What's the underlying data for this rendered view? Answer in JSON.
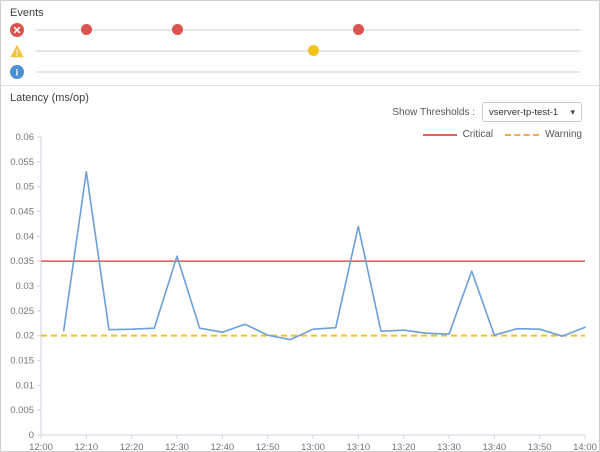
{
  "panels": {
    "events": {
      "title": "Events",
      "rows": [
        {
          "type": "error",
          "icon": "error-circle-icon",
          "icon_color": "#d9534f",
          "dot_color": "#d9534f",
          "events": [
            "12:10",
            "12:30",
            "13:10"
          ]
        },
        {
          "type": "warning",
          "icon": "warning-triangle-icon",
          "icon_color": "#f5c33b",
          "dot_color": "#f0c419",
          "events": [
            "13:00"
          ]
        },
        {
          "type": "info",
          "icon": "info-circle-icon",
          "icon_color": "#4a90d2",
          "dot_color": "#4a90d2",
          "events": []
        }
      ]
    },
    "latency": {
      "title": "Latency (ms/op)",
      "controls": {
        "label": "Show Thresholds :",
        "dropdown_value": "vserver-tp-test-1"
      },
      "legend": [
        {
          "label": "Critical",
          "color": "#e2615c",
          "style": "solid"
        },
        {
          "label": "Warning",
          "color": "#f0ad4e",
          "style": "dashed"
        }
      ]
    }
  },
  "chart_data": {
    "type": "line",
    "title": "Latency (ms/op)",
    "series_name": "Latency",
    "series_color": "#6d9fd8",
    "x": [
      "12:05",
      "12:10",
      "12:15",
      "12:20",
      "12:25",
      "12:30",
      "12:35",
      "12:40",
      "12:45",
      "12:50",
      "12:55",
      "13:00",
      "13:05",
      "13:10",
      "13:15",
      "13:20",
      "13:25",
      "13:30",
      "13:35",
      "13:40",
      "13:45",
      "13:50",
      "13:55",
      "14:00"
    ],
    "values": [
      0.021,
      0.053,
      0.0212,
      0.0213,
      0.0215,
      0.036,
      0.0215,
      0.0207,
      0.0223,
      0.0201,
      0.0192,
      0.0213,
      0.0216,
      0.042,
      0.0209,
      0.0211,
      0.0205,
      0.0203,
      0.033,
      0.0201,
      0.0214,
      0.0213,
      0.0199,
      0.0217
    ],
    "x_ticks": [
      "12:00",
      "12:10",
      "12:20",
      "12:30",
      "12:40",
      "12:50",
      "13:00",
      "13:10",
      "13:20",
      "13:30",
      "13:40",
      "13:50",
      "14:00"
    ],
    "y_ticks": [
      0,
      0.005,
      0.01,
      0.015,
      0.02,
      0.025,
      0.03,
      0.035,
      0.04,
      0.045,
      0.05,
      0.055,
      0.06
    ],
    "ylim": [
      0,
      0.06
    ],
    "xlim": [
      "12:00",
      "14:00"
    ],
    "xlabel": "",
    "ylabel": "",
    "grid": false,
    "legend_position": "top-right",
    "axis_color": "#ccd4e2",
    "thresholds": [
      {
        "name": "Critical",
        "value": 0.035,
        "color": "#e2615c",
        "style": "solid"
      },
      {
        "name": "Warning",
        "value": 0.02,
        "color": "#f4c025",
        "style": "dashed"
      }
    ]
  }
}
